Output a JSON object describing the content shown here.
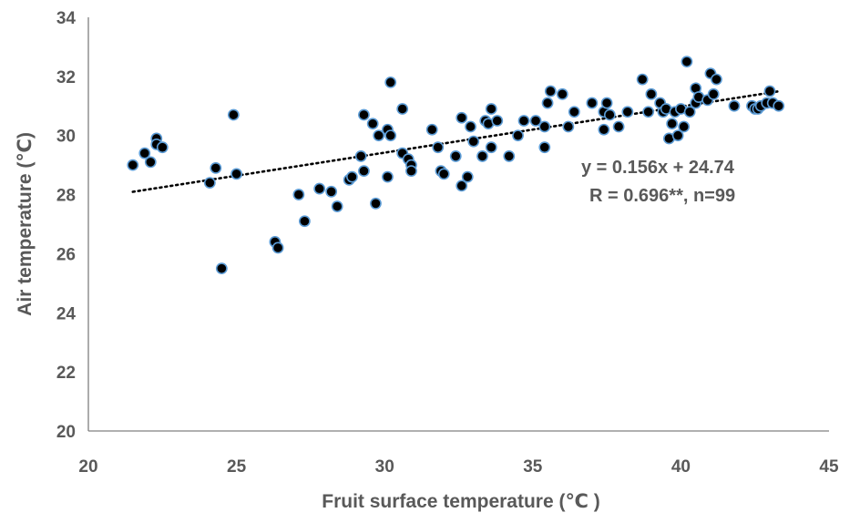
{
  "chart_data": {
    "type": "scatter",
    "xlabel": "Fruit surface temperature (℃ )",
    "ylabel": "Air temperature (℃)",
    "xlim": [
      20,
      45
    ],
    "ylim": [
      20,
      34
    ],
    "xticks": [
      20,
      25,
      30,
      35,
      40,
      45
    ],
    "yticks": [
      20,
      22,
      24,
      26,
      28,
      30,
      32,
      34
    ],
    "grid": false,
    "trendline": {
      "slope": 0.156,
      "intercept": 24.74,
      "x_range": [
        21.5,
        43.3
      ],
      "style": "dotted"
    },
    "annotations": [
      "y = 0.156x + 24.74",
      "R = 0.696**,  n=99"
    ],
    "colors": {
      "marker_fill": "#000000",
      "marker_edge": "#5b9bd5",
      "text": "#595959",
      "axis": "#808080"
    },
    "points": [
      [
        21.5,
        29.0
      ],
      [
        21.9,
        29.4
      ],
      [
        22.1,
        29.1
      ],
      [
        22.3,
        29.9
      ],
      [
        22.3,
        29.7
      ],
      [
        22.5,
        29.6
      ],
      [
        24.1,
        28.4
      ],
      [
        24.3,
        28.9
      ],
      [
        24.5,
        25.5
      ],
      [
        24.9,
        30.7
      ],
      [
        25.0,
        28.7
      ],
      [
        26.3,
        26.4
      ],
      [
        26.4,
        26.2
      ],
      [
        27.1,
        28.0
      ],
      [
        27.3,
        27.1
      ],
      [
        27.8,
        28.2
      ],
      [
        28.2,
        28.1
      ],
      [
        28.4,
        27.6
      ],
      [
        28.8,
        28.5
      ],
      [
        28.9,
        28.6
      ],
      [
        29.2,
        29.3
      ],
      [
        29.3,
        28.8
      ],
      [
        29.3,
        30.7
      ],
      [
        29.6,
        30.4
      ],
      [
        29.7,
        27.7
      ],
      [
        29.8,
        30.0
      ],
      [
        30.1,
        28.6
      ],
      [
        30.1,
        30.2
      ],
      [
        30.2,
        30.0
      ],
      [
        30.2,
        31.8
      ],
      [
        30.6,
        29.4
      ],
      [
        30.6,
        30.9
      ],
      [
        30.8,
        29.2
      ],
      [
        30.9,
        29.0
      ],
      [
        30.9,
        28.8
      ],
      [
        31.6,
        30.2
      ],
      [
        31.8,
        29.6
      ],
      [
        31.9,
        28.8
      ],
      [
        32.0,
        28.7
      ],
      [
        32.4,
        29.3
      ],
      [
        32.6,
        28.3
      ],
      [
        32.6,
        30.6
      ],
      [
        32.8,
        28.6
      ],
      [
        32.9,
        30.3
      ],
      [
        33.0,
        29.8
      ],
      [
        33.3,
        29.3
      ],
      [
        33.4,
        30.5
      ],
      [
        33.5,
        30.4
      ],
      [
        33.6,
        29.6
      ],
      [
        33.6,
        30.9
      ],
      [
        33.8,
        30.5
      ],
      [
        34.2,
        29.3
      ],
      [
        34.5,
        30.0
      ],
      [
        34.7,
        30.5
      ],
      [
        35.1,
        30.5
      ],
      [
        35.4,
        29.6
      ],
      [
        35.4,
        30.3
      ],
      [
        35.5,
        31.1
      ],
      [
        35.6,
        31.5
      ],
      [
        36.0,
        31.4
      ],
      [
        36.2,
        30.3
      ],
      [
        36.4,
        30.8
      ],
      [
        37.0,
        31.1
      ],
      [
        37.4,
        30.2
      ],
      [
        37.4,
        30.8
      ],
      [
        37.5,
        31.1
      ],
      [
        37.6,
        30.7
      ],
      [
        37.9,
        30.3
      ],
      [
        38.2,
        30.8
      ],
      [
        38.7,
        31.9
      ],
      [
        38.9,
        30.8
      ],
      [
        39.0,
        31.4
      ],
      [
        39.3,
        31.1
      ],
      [
        39.4,
        30.8
      ],
      [
        39.5,
        30.9
      ],
      [
        39.6,
        29.9
      ],
      [
        39.7,
        30.4
      ],
      [
        39.8,
        30.8
      ],
      [
        39.9,
        30.0
      ],
      [
        40.0,
        30.9
      ],
      [
        40.1,
        30.3
      ],
      [
        40.2,
        32.5
      ],
      [
        40.3,
        30.8
      ],
      [
        40.5,
        31.1
      ],
      [
        40.5,
        31.6
      ],
      [
        40.6,
        31.3
      ],
      [
        40.9,
        31.2
      ],
      [
        41.0,
        32.1
      ],
      [
        41.1,
        31.4
      ],
      [
        41.2,
        31.9
      ],
      [
        41.8,
        31.0
      ],
      [
        42.4,
        31.0
      ],
      [
        42.5,
        30.9
      ],
      [
        42.6,
        30.9
      ],
      [
        42.7,
        31.0
      ],
      [
        42.9,
        31.1
      ],
      [
        43.0,
        31.5
      ],
      [
        43.1,
        31.1
      ],
      [
        43.3,
        31.0
      ]
    ]
  }
}
